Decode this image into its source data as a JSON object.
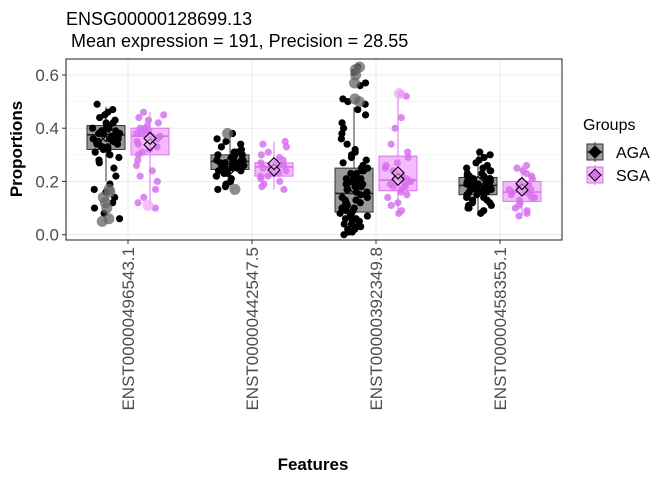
{
  "chart_data": {
    "type": "box",
    "title": "ENSG00000128699.13",
    "subtitle": " Mean expression = 191, Precision = 28.55",
    "xlabel": "Features",
    "ylabel": "Proportions",
    "ylim": [
      -0.02,
      0.66
    ],
    "yticks": [
      0.0,
      0.2,
      0.4,
      0.6
    ],
    "ytick_labels": [
      "0.0",
      "0.2",
      "0.4",
      "0.6"
    ],
    "grid": true,
    "legend": {
      "title": "Groups",
      "position": "right",
      "entries": [
        "AGA",
        "SGA"
      ]
    },
    "categories": [
      "ENST00000496543.1",
      "ENST00000442547.5",
      "ENST00000392349.8",
      "ENST00000458355.1"
    ],
    "series": [
      {
        "name": "AGA",
        "fill": "#808080",
        "fill_opacity": 0.8,
        "point_color": "#000000",
        "box": [
          {
            "q1": 0.32,
            "median": 0.375,
            "q3": 0.41,
            "wmin": 0.2,
            "wmax": 0.48,
            "mean": 0.36
          },
          {
            "q1": 0.245,
            "median": 0.275,
            "q3": 0.3,
            "wmin": 0.18,
            "wmax": 0.37,
            "mean": 0.26
          },
          {
            "q1": 0.085,
            "median": 0.155,
            "q3": 0.25,
            "wmin": 0.0,
            "wmax": 0.48,
            "mean": 0.19
          },
          {
            "q1": 0.15,
            "median": 0.185,
            "q3": 0.215,
            "wmin": 0.08,
            "wmax": 0.3,
            "mean": 0.185
          }
        ],
        "outliers": [
          [
            0.05,
            0.06,
            0.1,
            0.12,
            0.14,
            0.16,
            0.17
          ],
          [
            0.17,
            0.38
          ],
          [
            0.5,
            0.51,
            0.57,
            0.6,
            0.62,
            0.63
          ],
          []
        ],
        "points": [
          [
            0.49,
            0.47,
            0.46,
            0.45,
            0.44,
            0.43,
            0.42,
            0.42,
            0.41,
            0.41,
            0.4,
            0.4,
            0.4,
            0.39,
            0.39,
            0.39,
            0.38,
            0.38,
            0.38,
            0.37,
            0.37,
            0.37,
            0.36,
            0.36,
            0.36,
            0.35,
            0.35,
            0.35,
            0.34,
            0.34,
            0.33,
            0.33,
            0.33,
            0.32,
            0.32,
            0.31,
            0.3,
            0.29,
            0.28,
            0.27,
            0.25,
            0.22,
            0.19,
            0.17,
            0.16,
            0.14,
            0.12,
            0.1,
            0.08,
            0.06
          ],
          [
            0.38,
            0.36,
            0.35,
            0.34,
            0.33,
            0.32,
            0.31,
            0.31,
            0.3,
            0.3,
            0.3,
            0.29,
            0.29,
            0.29,
            0.28,
            0.28,
            0.28,
            0.28,
            0.27,
            0.27,
            0.27,
            0.27,
            0.26,
            0.26,
            0.26,
            0.26,
            0.25,
            0.25,
            0.25,
            0.25,
            0.24,
            0.24,
            0.24,
            0.23,
            0.23,
            0.22,
            0.22,
            0.21,
            0.2,
            0.19,
            0.18,
            0.17
          ],
          [
            0.63,
            0.61,
            0.57,
            0.56,
            0.51,
            0.5,
            0.49,
            0.47,
            0.45,
            0.42,
            0.4,
            0.38,
            0.36,
            0.34,
            0.32,
            0.31,
            0.3,
            0.29,
            0.28,
            0.27,
            0.26,
            0.25,
            0.25,
            0.24,
            0.24,
            0.23,
            0.23,
            0.22,
            0.22,
            0.21,
            0.21,
            0.2,
            0.2,
            0.19,
            0.19,
            0.18,
            0.18,
            0.17,
            0.17,
            0.16,
            0.16,
            0.15,
            0.15,
            0.14,
            0.14,
            0.13,
            0.13,
            0.12,
            0.12,
            0.11,
            0.11,
            0.1,
            0.1,
            0.09,
            0.09,
            0.08,
            0.08,
            0.07,
            0.07,
            0.06,
            0.06,
            0.05,
            0.05,
            0.04,
            0.04,
            0.03,
            0.03,
            0.02,
            0.02,
            0.01,
            0.01,
            0.0
          ],
          [
            0.31,
            0.3,
            0.29,
            0.28,
            0.27,
            0.26,
            0.25,
            0.25,
            0.24,
            0.24,
            0.23,
            0.23,
            0.22,
            0.22,
            0.22,
            0.21,
            0.21,
            0.21,
            0.2,
            0.2,
            0.2,
            0.19,
            0.19,
            0.19,
            0.19,
            0.18,
            0.18,
            0.18,
            0.18,
            0.17,
            0.17,
            0.17,
            0.17,
            0.16,
            0.16,
            0.16,
            0.15,
            0.15,
            0.15,
            0.14,
            0.14,
            0.13,
            0.13,
            0.12,
            0.12,
            0.11,
            0.11,
            0.1,
            0.1,
            0.09,
            0.08
          ]
        ]
      },
      {
        "name": "SGA",
        "fill": "#f2a9f7",
        "fill_opacity": 0.8,
        "point_color": "#d772f0",
        "box": [
          {
            "q1": 0.3,
            "median": 0.37,
            "q3": 0.4,
            "wmin": 0.11,
            "wmax": 0.46,
            "mean": 0.35
          },
          {
            "q1": 0.22,
            "median": 0.255,
            "q3": 0.27,
            "wmin": 0.17,
            "wmax": 0.35,
            "mean": 0.255
          },
          {
            "q1": 0.165,
            "median": 0.205,
            "q3": 0.295,
            "wmin": 0.08,
            "wmax": 0.53,
            "mean": 0.22
          },
          {
            "q1": 0.125,
            "median": 0.16,
            "q3": 0.2,
            "wmin": 0.07,
            "wmax": 0.26,
            "mean": 0.18
          }
        ],
        "outliers": [
          [
            0.11
          ],
          [],
          [
            0.53
          ],
          []
        ],
        "points": [
          [
            0.46,
            0.45,
            0.44,
            0.43,
            0.42,
            0.41,
            0.4,
            0.4,
            0.39,
            0.39,
            0.38,
            0.38,
            0.37,
            0.37,
            0.36,
            0.35,
            0.34,
            0.33,
            0.32,
            0.31,
            0.3,
            0.28,
            0.26,
            0.24,
            0.22,
            0.2,
            0.17,
            0.14,
            0.12,
            0.1
          ],
          [
            0.35,
            0.34,
            0.33,
            0.31,
            0.3,
            0.29,
            0.28,
            0.27,
            0.27,
            0.26,
            0.26,
            0.25,
            0.25,
            0.24,
            0.24,
            0.23,
            0.23,
            0.22,
            0.22,
            0.21,
            0.2,
            0.19,
            0.18,
            0.17
          ],
          [
            0.53,
            0.52,
            0.44,
            0.4,
            0.34,
            0.31,
            0.29,
            0.27,
            0.26,
            0.25,
            0.24,
            0.23,
            0.22,
            0.21,
            0.21,
            0.2,
            0.2,
            0.19,
            0.19,
            0.18,
            0.18,
            0.17,
            0.16,
            0.15,
            0.14,
            0.12,
            0.11,
            0.09,
            0.08
          ],
          [
            0.26,
            0.25,
            0.24,
            0.23,
            0.22,
            0.21,
            0.2,
            0.2,
            0.19,
            0.19,
            0.18,
            0.18,
            0.17,
            0.17,
            0.16,
            0.16,
            0.15,
            0.15,
            0.14,
            0.14,
            0.13,
            0.12,
            0.11,
            0.1,
            0.09,
            0.08,
            0.07
          ]
        ]
      }
    ]
  }
}
